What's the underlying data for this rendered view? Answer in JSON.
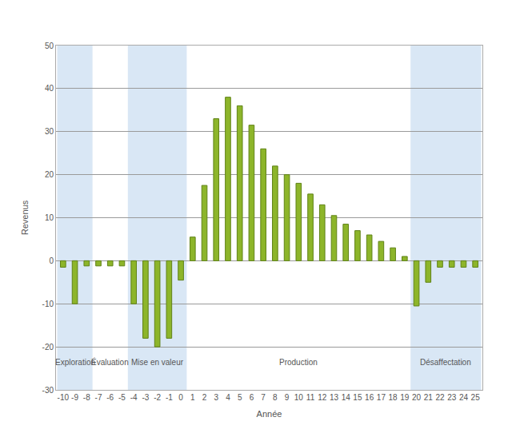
{
  "chart_data": {
    "type": "bar",
    "xlabel": "Année",
    "ylabel": "Revenus",
    "x": [
      -10,
      -9,
      -8,
      -7,
      -6,
      -5,
      -4,
      -3,
      -2,
      -1,
      0,
      1,
      2,
      3,
      4,
      5,
      6,
      7,
      8,
      9,
      10,
      11,
      12,
      13,
      14,
      15,
      16,
      17,
      18,
      19,
      20,
      21,
      22,
      23,
      24,
      25
    ],
    "values": [
      -1.5,
      -10,
      -1.2,
      -1.2,
      -1.2,
      -1.2,
      -10,
      -18,
      -20,
      -18,
      -4.5,
      5.5,
      17.5,
      33,
      38,
      36,
      31.5,
      26,
      22,
      20,
      18,
      15.5,
      13,
      10.5,
      8.5,
      7,
      6,
      4.5,
      3,
      1,
      -10.5,
      -5,
      -1.5,
      -1.5,
      -1.5,
      -1.5
    ],
    "color": "#8db52a",
    "xlim": [
      -10.6,
      25.6
    ],
    "ylim": [
      -30,
      50
    ],
    "xticks": [
      -10,
      -9,
      -8,
      -7,
      -6,
      -5,
      -4,
      -3,
      -2,
      -1,
      0,
      1,
      2,
      3,
      4,
      5,
      6,
      7,
      8,
      9,
      10,
      11,
      12,
      13,
      14,
      15,
      16,
      17,
      18,
      19,
      20,
      21,
      22,
      23,
      24,
      25
    ],
    "yticks": [
      -30,
      -20,
      -10,
      0,
      10,
      20,
      30,
      40,
      50
    ],
    "grid": true,
    "phases": [
      {
        "label": "Exploration",
        "start": -10,
        "end": -8
      },
      {
        "label": "Évaluation",
        "start": -7,
        "end": -5
      },
      {
        "label": "Mise en valeur",
        "start": -4,
        "end": 0
      },
      {
        "label": "Production",
        "start": 1,
        "end": 19
      },
      {
        "label": "Désaffectation",
        "start": 20,
        "end": 25
      }
    ]
  }
}
